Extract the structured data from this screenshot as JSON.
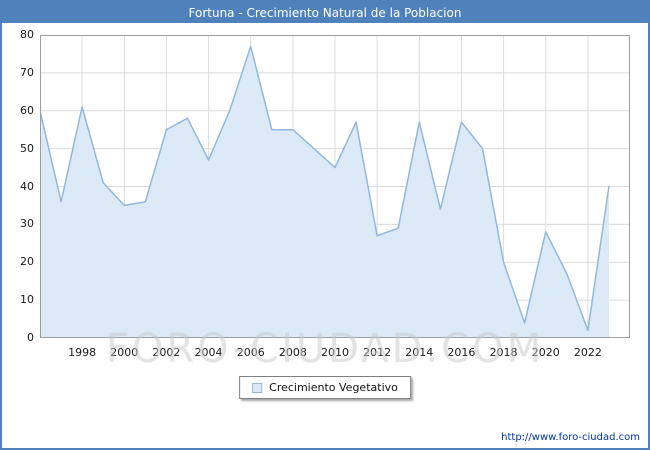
{
  "header": {
    "title": "Fortuna - Crecimiento Natural de la Poblacion"
  },
  "legend": {
    "label": "Crecimiento Vegetativo"
  },
  "footer": {
    "url": "http://www.foro-ciudad.com"
  },
  "watermark": "FORO-CIUDAD.COM",
  "colors": {
    "frame": "#4f81bd",
    "titlebar_bg": "#4f81bd",
    "titlebar_text": "#ffffff",
    "area_fill": "#dce9f7",
    "line": "#93b8dc",
    "grid": "#dcdcdc",
    "plot_border": "#9e9e9e",
    "url_text": "#0033a0"
  },
  "chart_data": {
    "type": "area",
    "title": "Fortuna - Crecimiento Natural de la Poblacion",
    "legend_entries": [
      "Crecimiento Vegetativo"
    ],
    "legend_position": "bottom-center",
    "grid": true,
    "xlabel": "",
    "ylabel": "",
    "xlim": [
      1996,
      2024
    ],
    "ylim": [
      0,
      80
    ],
    "xticks": [
      1998,
      2000,
      2002,
      2004,
      2006,
      2008,
      2010,
      2012,
      2014,
      2016,
      2018,
      2020,
      2022
    ],
    "yticks": [
      0,
      10,
      20,
      30,
      40,
      50,
      60,
      70,
      80
    ],
    "x": [
      1996,
      1997,
      1998,
      1999,
      2000,
      2001,
      2002,
      2003,
      2004,
      2005,
      2006,
      2007,
      2008,
      2009,
      2010,
      2011,
      2012,
      2013,
      2014,
      2015,
      2016,
      2017,
      2018,
      2019,
      2020,
      2021,
      2022,
      2023
    ],
    "values": [
      60,
      36,
      61,
      41,
      35,
      36,
      55,
      58,
      47,
      60,
      77,
      55,
      55,
      50,
      45,
      57,
      27,
      29,
      57,
      34,
      57,
      50,
      20,
      4,
      28,
      17,
      2,
      40
    ]
  }
}
